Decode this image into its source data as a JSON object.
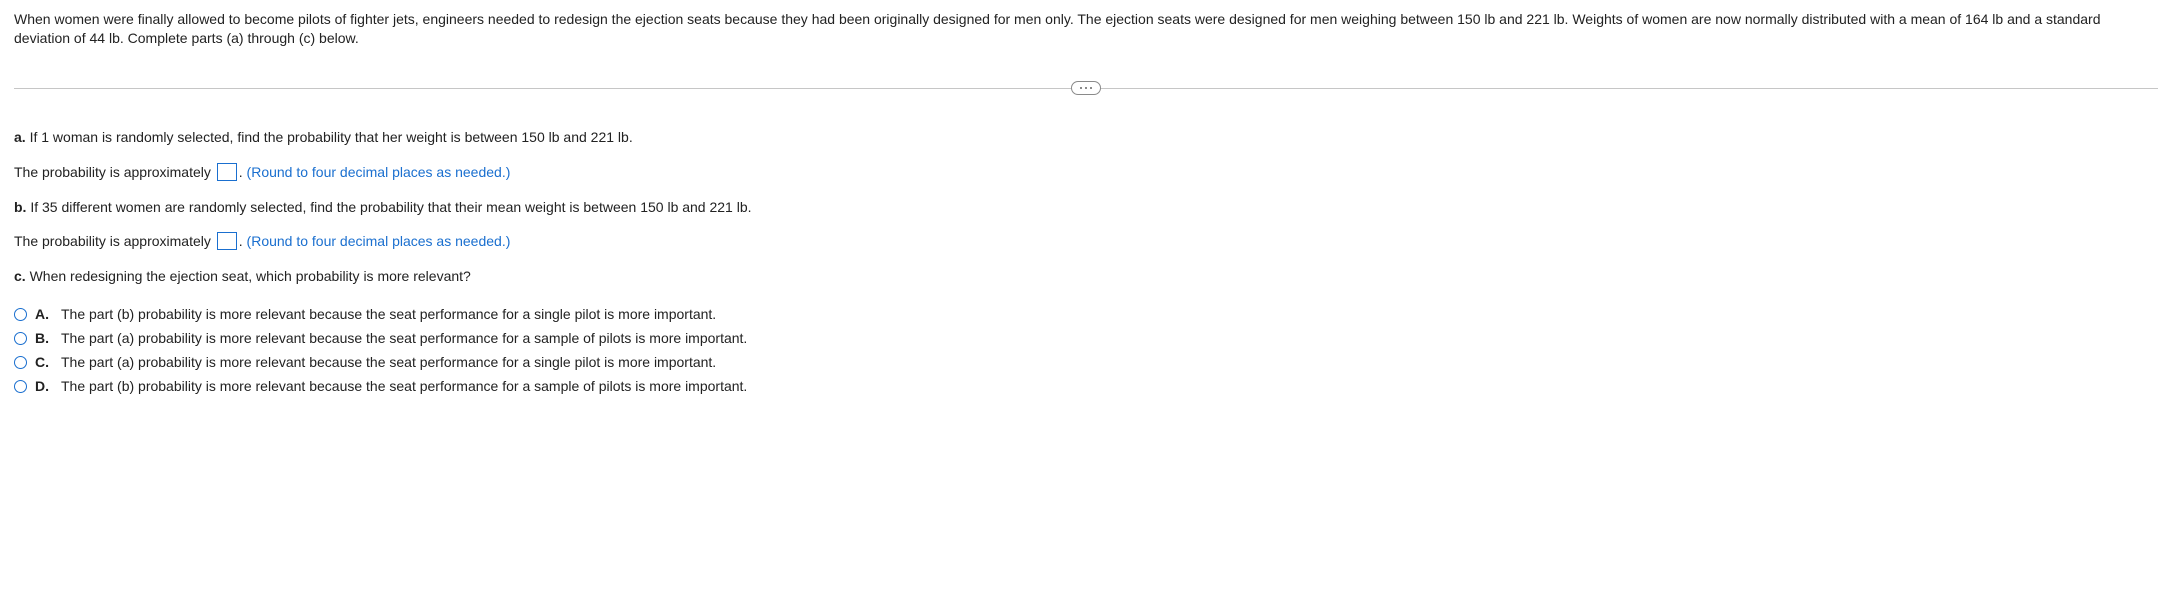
{
  "problem": {
    "statement": "When women were finally allowed to become pilots of fighter jets, engineers needed to redesign the ejection seats because they had been originally designed for men only. The ejection seats were designed for men weighing between 150 lb and 221 lb. Weights of women are now normally distributed with a mean of 164 lb and a standard deviation of 44 lb. Complete parts (a) through (c) below."
  },
  "parts": {
    "a": {
      "label": "a.",
      "prompt": "If 1 woman is randomly selected, find the probability that her weight is between 150 lb and 221 lb.",
      "answer_lead": "The probability is approximately ",
      "answer_trail": ". ",
      "hint": "(Round to four decimal places as needed.)"
    },
    "b": {
      "label": "b.",
      "prompt": "If 35 different women are randomly selected, find the probability that their mean weight is between 150 lb and 221 lb.",
      "answer_lead": "The probability is approximately ",
      "answer_trail": ". ",
      "hint": "(Round to four decimal places as needed.)"
    },
    "c": {
      "label": "c.",
      "prompt": "When redesigning the ejection seat, which probability is more relevant?"
    }
  },
  "options": [
    {
      "key": "A.",
      "text": "The part (b) probability is more relevant because the seat performance for a single pilot is more important."
    },
    {
      "key": "B.",
      "text": "The part (a) probability is more relevant because the seat performance for a sample of pilots is more important."
    },
    {
      "key": "C.",
      "text": "The part (a) probability is more relevant because the seat performance for a single pilot is more important."
    },
    {
      "key": "D.",
      "text": "The part (b) probability is more relevant because the seat performance for a sample of pilots is more important."
    }
  ],
  "colors": {
    "accent": "#1a6fcf",
    "divider": "#c6c6c6",
    "text": "#222222",
    "background": "#ffffff"
  }
}
